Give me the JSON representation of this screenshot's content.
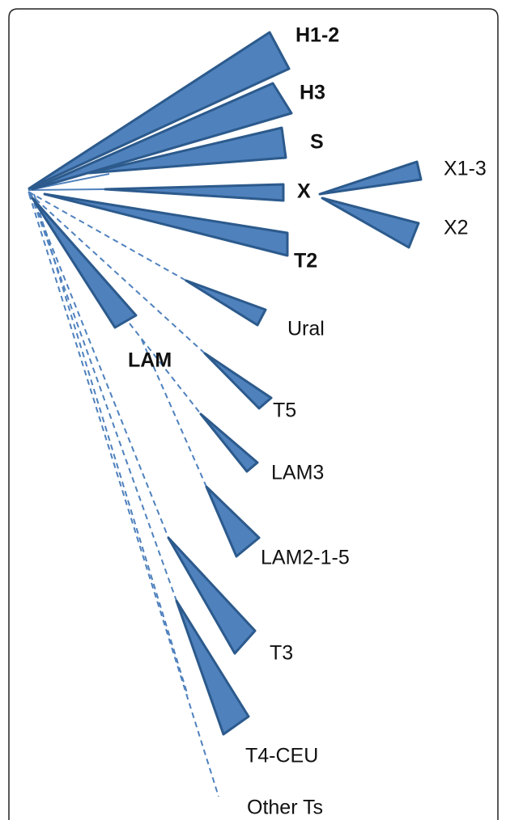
{
  "nodes": [
    {
      "label": "H1-2"
    },
    {
      "label": "H3"
    },
    {
      "label": "S"
    },
    {
      "label": "X"
    },
    {
      "label": "T2"
    },
    {
      "label": "X1-3"
    },
    {
      "label": "X2"
    },
    {
      "label": "Ural"
    },
    {
      "label": "LAM"
    },
    {
      "label": "T5"
    },
    {
      "label": "LAM3"
    },
    {
      "label": "LAM2-1-5"
    },
    {
      "label": "T3"
    },
    {
      "label": "T4-CEU"
    },
    {
      "label": "Other Ts"
    }
  ]
}
